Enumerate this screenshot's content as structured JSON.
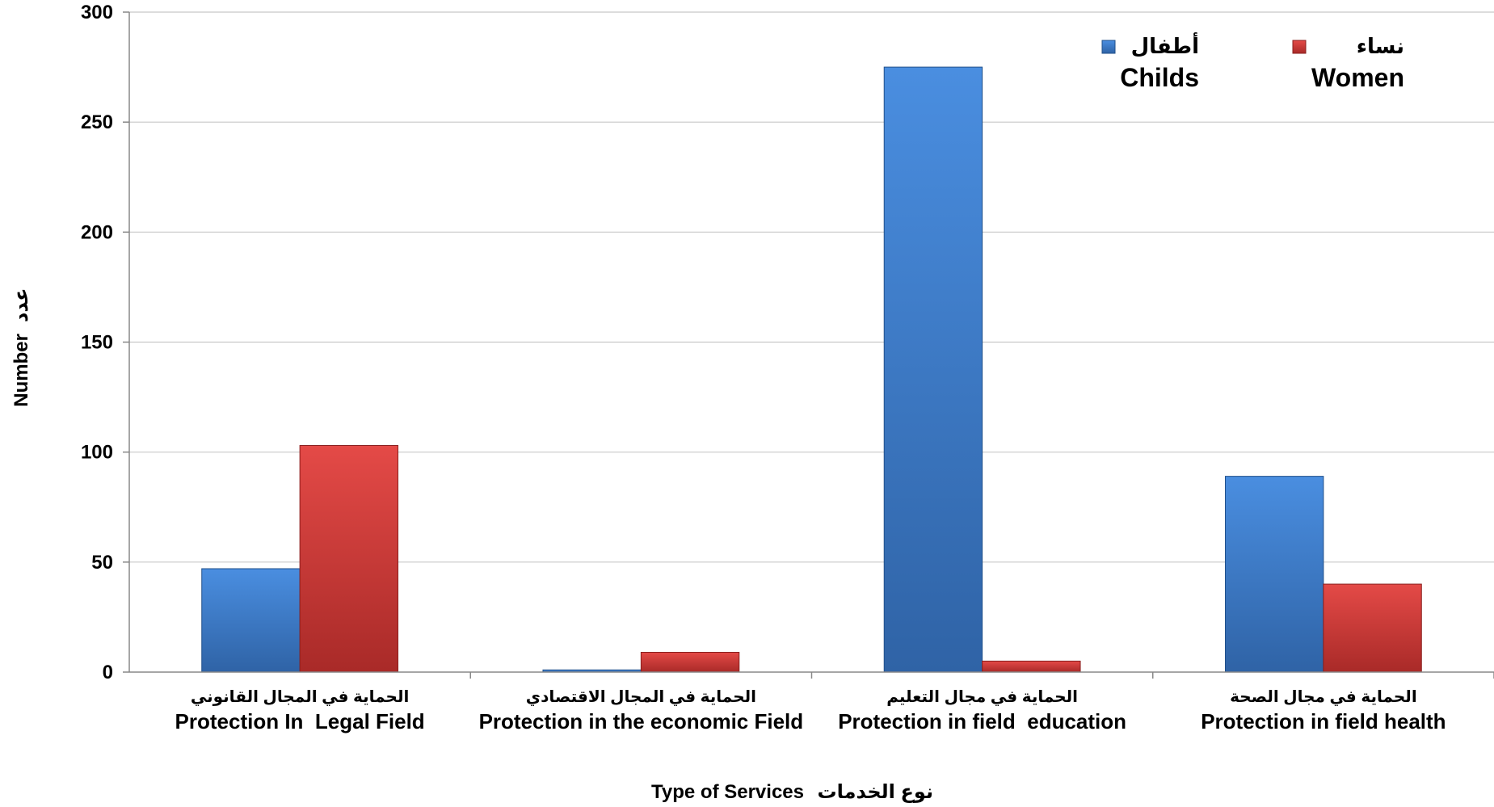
{
  "chart_data": {
    "type": "bar",
    "categories": [
      {
        "ar": "الحماية في المجال القانوني",
        "en": "Protection In  Legal Field"
      },
      {
        "ar": "الحماية في المجال الاقتصادي",
        "en": "Protection in the economic Field"
      },
      {
        "ar": "الحماية في مجال التعليم",
        "en": "Protection in field  education"
      },
      {
        "ar": "الحماية في مجال الصحة",
        "en": "Protection in field health"
      }
    ],
    "series": [
      {
        "key": "childs",
        "name_ar": "أطفال",
        "name_en": "Childs",
        "color": "#3d7ac9",
        "values": [
          47,
          1,
          275,
          89
        ]
      },
      {
        "key": "women",
        "name_ar": "نساء",
        "name_en": "Women",
        "color": "#d63c3a",
        "values": [
          103,
          9,
          5,
          40
        ]
      }
    ],
    "xlabel_en": "Type of Services",
    "xlabel_ar": "نوع الخدمات",
    "ylabel_en": "Number",
    "ylabel_ar": "عدد",
    "ylim": [
      0,
      300
    ],
    "yticks": [
      0,
      50,
      100,
      150,
      200,
      250,
      300
    ],
    "grid": true,
    "legend_position": "top-right"
  }
}
